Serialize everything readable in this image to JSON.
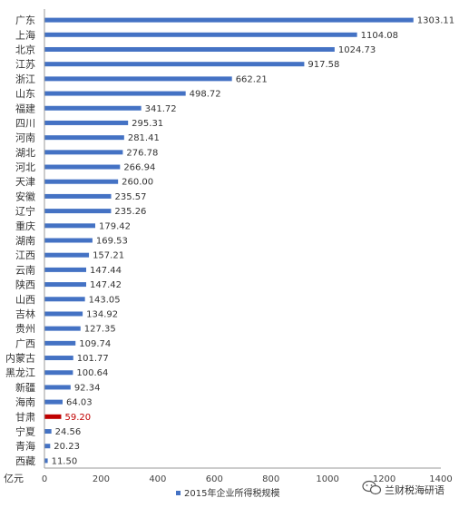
{
  "chart_data": {
    "type": "bar",
    "orientation": "horizontal",
    "title": "",
    "xlabel": "",
    "ylabel": "",
    "x_unit": "亿元",
    "xlim": [
      0,
      1400
    ],
    "x_ticks": [
      0,
      200,
      400,
      600,
      800,
      1000,
      1200,
      1400
    ],
    "grid": false,
    "legend": "bottom",
    "categories": [
      "广东",
      "上海",
      "北京",
      "江苏",
      "浙江",
      "山东",
      "福建",
      "四川",
      "河南",
      "湖北",
      "河北",
      "天津",
      "安徽",
      "辽宁",
      "重庆",
      "湖南",
      "江西",
      "云南",
      "陕西",
      "山西",
      "吉林",
      "贵州",
      "广西",
      "内蒙古",
      "黑龙江",
      "新疆",
      "海南",
      "甘肃",
      "宁夏",
      "青海",
      "西藏"
    ],
    "value_labels": [
      "1303.11",
      "1104.08",
      "1024.73",
      "917.58",
      "662.21",
      "498.72",
      "341.72",
      "295.31",
      "281.41",
      "276.78",
      "266.94",
      "260.00",
      "235.57",
      "235.26",
      "179.42",
      "169.53",
      "157.21",
      "147.44",
      "147.42",
      "143.05",
      "134.92",
      "127.35",
      "109.74",
      "101.77",
      "100.64",
      "92.34",
      "64.03",
      "59.20",
      "24.56",
      "20.23",
      "11.50"
    ],
    "series": [
      {
        "name": "2015年企业所得税规模",
        "color": "#4472c4",
        "values": [
          1303.11,
          1104.08,
          1024.73,
          917.58,
          662.21,
          498.72,
          341.72,
          295.31,
          281.41,
          276.78,
          266.94,
          260.0,
          235.57,
          235.26,
          179.42,
          169.53,
          157.21,
          147.44,
          147.42,
          143.05,
          134.92,
          127.35,
          109.74,
          101.77,
          100.64,
          92.34,
          64.03,
          59.2,
          24.56,
          20.23,
          11.5
        ]
      }
    ],
    "highlight": {
      "category": "甘肃",
      "color": "#c00000"
    }
  },
  "watermark": {
    "text": "兰财税海研语",
    "icon": "wechat-bubble-icon"
  }
}
